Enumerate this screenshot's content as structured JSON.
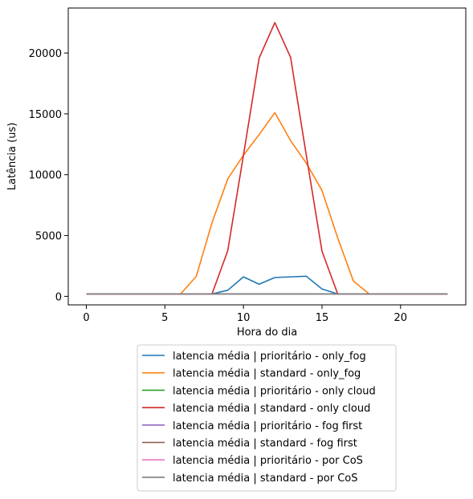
{
  "chart_data": {
    "type": "line",
    "xlabel": "Hora do dia",
    "ylabel": "Latência (us)",
    "xlim": [
      -1.15,
      24.15
    ],
    "ylim": [
      -700,
      23700
    ],
    "xticks": [
      0,
      5,
      10,
      15,
      20
    ],
    "yticks": [
      0,
      5000,
      10000,
      15000,
      20000
    ],
    "grid": false,
    "legend_position": "below plot",
    "x": [
      0,
      1,
      2,
      3,
      4,
      5,
      6,
      7,
      8,
      9,
      10,
      11,
      12,
      13,
      14,
      15,
      16,
      17,
      18,
      19,
      20,
      21,
      22,
      23
    ],
    "series": [
      {
        "name": "latencia média | prioritário - only_fog",
        "color": "#1f77b4",
        "values": [
          200,
          200,
          200,
          200,
          200,
          200,
          200,
          200,
          200,
          500,
          1600,
          1000,
          1550,
          1600,
          1650,
          600,
          200,
          200,
          200,
          200,
          200,
          200,
          200,
          200
        ]
      },
      {
        "name": "latencia média | standard - only_fog",
        "color": "#ff7f0e",
        "values": [
          200,
          200,
          200,
          200,
          200,
          200,
          200,
          1650,
          6050,
          9650,
          11600,
          13300,
          15100,
          12800,
          10950,
          8700,
          4800,
          1250,
          200,
          200,
          200,
          200,
          200,
          200
        ]
      },
      {
        "name": "latencia média | prioritário - only cloud",
        "color": "#2ca02c",
        "values": [
          200,
          200,
          200,
          200,
          200,
          200,
          200,
          200,
          200,
          200,
          200,
          200,
          200,
          200,
          200,
          200,
          200,
          200,
          200,
          200,
          200,
          200,
          200,
          200
        ]
      },
      {
        "name": "latencia média | standard - only cloud",
        "color": "#d62728",
        "values": [
          200,
          200,
          200,
          200,
          200,
          200,
          200,
          200,
          200,
          3750,
          11600,
          19600,
          22500,
          19650,
          11600,
          3700,
          200,
          200,
          200,
          200,
          200,
          200,
          200,
          200
        ]
      },
      {
        "name": "latencia média | prioritário - fog first",
        "color": "#9467bd",
        "values": [
          200,
          200,
          200,
          200,
          200,
          200,
          200,
          200,
          200,
          200,
          200,
          200,
          200,
          200,
          200,
          200,
          200,
          200,
          200,
          200,
          200,
          200,
          200,
          200
        ]
      },
      {
        "name": "latencia média | standard - fog first",
        "color": "#8c564b",
        "values": [
          200,
          200,
          200,
          200,
          200,
          200,
          200,
          200,
          200,
          200,
          200,
          200,
          200,
          200,
          200,
          200,
          200,
          200,
          200,
          200,
          200,
          200,
          200,
          200
        ]
      },
      {
        "name": "latencia média | prioritário - por CoS",
        "color": "#e377c2",
        "values": [
          200,
          200,
          200,
          200,
          200,
          200,
          200,
          200,
          200,
          200,
          200,
          200,
          200,
          200,
          200,
          200,
          200,
          200,
          200,
          200,
          200,
          200,
          200,
          200
        ]
      },
      {
        "name": "latencia média | standard - por CoS",
        "color": "#7f7f7f",
        "values": [
          200,
          200,
          200,
          200,
          200,
          200,
          200,
          200,
          200,
          200,
          200,
          200,
          200,
          200,
          200,
          200,
          200,
          200,
          200,
          200,
          200,
          200,
          200,
          200
        ]
      }
    ]
  }
}
